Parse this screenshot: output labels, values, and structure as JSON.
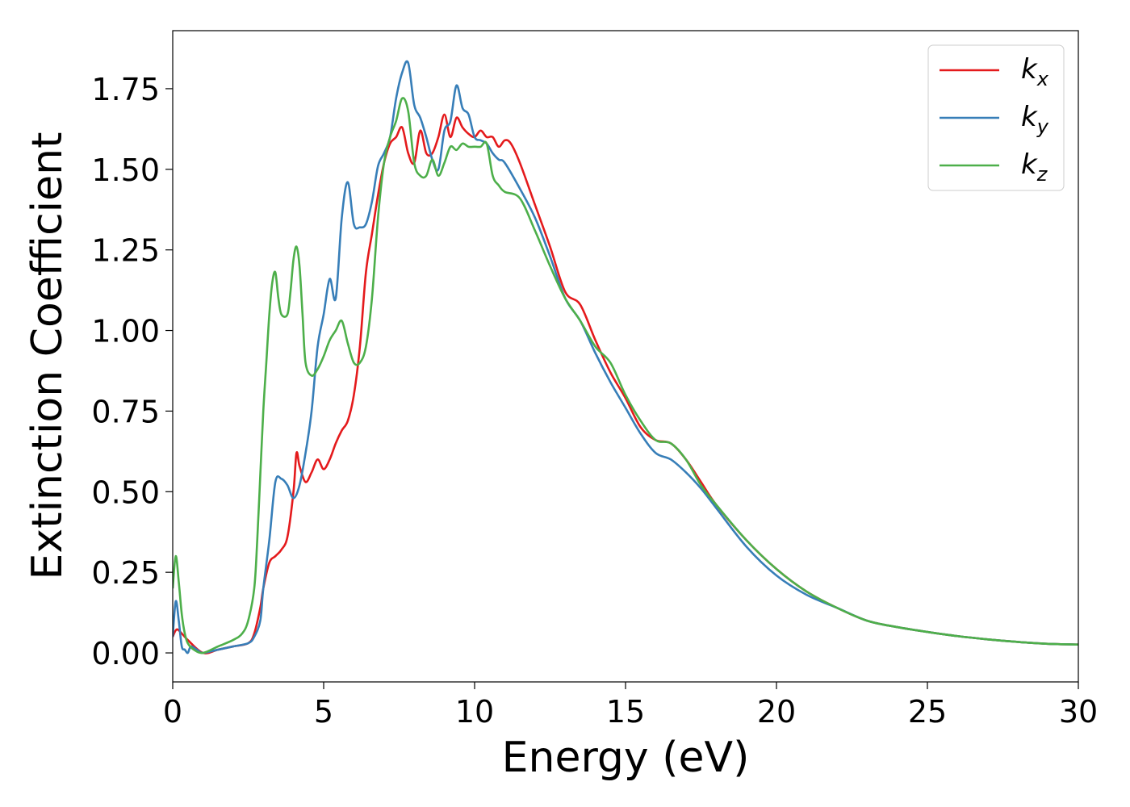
{
  "chart_data": {
    "type": "line",
    "title": "",
    "xlabel": "Energy (eV)",
    "ylabel": "Extinction Coefficient",
    "xlim": [
      0,
      30
    ],
    "ylim": [
      -0.09,
      1.93
    ],
    "xticks": [
      0,
      5,
      10,
      15,
      20,
      25,
      30
    ],
    "xtick_labels": [
      "0",
      "5",
      "10",
      "15",
      "20",
      "25",
      "30"
    ],
    "yticks": [
      0.0,
      0.25,
      0.5,
      0.75,
      1.0,
      1.25,
      1.5,
      1.75
    ],
    "ytick_labels": [
      "0.00",
      "0.25",
      "0.50",
      "0.75",
      "1.00",
      "1.25",
      "1.50",
      "1.75"
    ],
    "grid": false,
    "legend_position": "top-right",
    "series": [
      {
        "name": "k",
        "subscript": "x",
        "color": "#e41a1c",
        "x": [
          0,
          0.1,
          0.2,
          0.5,
          1.0,
          1.5,
          2.0,
          2.5,
          2.7,
          2.9,
          3.0,
          3.2,
          3.4,
          3.6,
          3.8,
          4.0,
          4.1,
          4.2,
          4.4,
          4.6,
          4.8,
          5.0,
          5.2,
          5.4,
          5.6,
          5.8,
          6.0,
          6.2,
          6.4,
          6.6,
          6.8,
          7.0,
          7.2,
          7.4,
          7.6,
          7.8,
          8.0,
          8.2,
          8.4,
          8.6,
          8.8,
          9.0,
          9.2,
          9.4,
          9.6,
          9.8,
          10.0,
          10.2,
          10.4,
          10.6,
          10.8,
          11.0,
          11.2,
          11.5,
          12.0,
          12.5,
          13.0,
          13.5,
          14.0,
          14.5,
          15.0,
          15.5,
          16.0,
          16.5,
          17.0,
          17.5,
          18.0,
          19.0,
          20.0,
          21.0,
          22.0,
          23.0,
          24.0,
          25.0,
          26.0,
          27.0,
          28.0,
          29.0,
          30.0
        ],
        "values": [
          0.05,
          0.07,
          0.07,
          0.04,
          0.0,
          0.01,
          0.02,
          0.03,
          0.06,
          0.14,
          0.2,
          0.28,
          0.3,
          0.32,
          0.36,
          0.5,
          0.62,
          0.58,
          0.53,
          0.56,
          0.6,
          0.57,
          0.6,
          0.65,
          0.69,
          0.72,
          0.8,
          0.95,
          1.18,
          1.3,
          1.42,
          1.52,
          1.58,
          1.6,
          1.63,
          1.55,
          1.52,
          1.62,
          1.55,
          1.55,
          1.6,
          1.67,
          1.6,
          1.66,
          1.63,
          1.61,
          1.6,
          1.62,
          1.6,
          1.6,
          1.57,
          1.59,
          1.58,
          1.52,
          1.39,
          1.26,
          1.12,
          1.08,
          0.97,
          0.87,
          0.79,
          0.7,
          0.66,
          0.65,
          0.6,
          0.53,
          0.46,
          0.35,
          0.26,
          0.19,
          0.14,
          0.1,
          0.08,
          0.065,
          0.052,
          0.042,
          0.034,
          0.028,
          0.026
        ]
      },
      {
        "name": "k",
        "subscript": "y",
        "color": "#377eb8",
        "x": [
          0,
          0.1,
          0.2,
          0.3,
          0.4,
          0.5,
          0.6,
          0.8,
          1.0,
          1.5,
          2.0,
          2.5,
          2.7,
          2.9,
          3.0,
          3.2,
          3.4,
          3.6,
          3.8,
          4.0,
          4.2,
          4.4,
          4.6,
          4.8,
          5.0,
          5.2,
          5.4,
          5.6,
          5.8,
          6.0,
          6.2,
          6.4,
          6.6,
          6.8,
          7.0,
          7.2,
          7.4,
          7.6,
          7.8,
          8.0,
          8.2,
          8.4,
          8.6,
          8.8,
          9.0,
          9.2,
          9.4,
          9.6,
          9.8,
          10.0,
          10.2,
          10.4,
          10.6,
          10.8,
          11.0,
          11.5,
          12.0,
          12.5,
          13.0,
          13.5,
          14.0,
          14.5,
          15.0,
          15.5,
          16.0,
          16.5,
          17.0,
          17.5,
          18.0,
          19.0,
          20.0,
          21.0,
          22.0,
          23.0,
          24.0,
          25.0,
          26.0,
          27.0,
          28.0,
          29.0,
          30.0
        ],
        "values": [
          0.05,
          0.16,
          0.1,
          0.02,
          0.01,
          0.0,
          0.02,
          0.01,
          0.0,
          0.01,
          0.02,
          0.03,
          0.05,
          0.1,
          0.2,
          0.35,
          0.53,
          0.54,
          0.52,
          0.48,
          0.52,
          0.62,
          0.75,
          0.95,
          1.05,
          1.16,
          1.1,
          1.35,
          1.46,
          1.33,
          1.32,
          1.33,
          1.4,
          1.51,
          1.55,
          1.6,
          1.72,
          1.8,
          1.83,
          1.7,
          1.66,
          1.6,
          1.53,
          1.5,
          1.62,
          1.65,
          1.76,
          1.69,
          1.67,
          1.6,
          1.59,
          1.58,
          1.55,
          1.53,
          1.52,
          1.44,
          1.35,
          1.23,
          1.1,
          1.03,
          0.93,
          0.84,
          0.76,
          0.68,
          0.62,
          0.6,
          0.56,
          0.51,
          0.45,
          0.33,
          0.24,
          0.18,
          0.14,
          0.1,
          0.08,
          0.065,
          0.052,
          0.042,
          0.034,
          0.028,
          0.026
        ]
      },
      {
        "name": "k",
        "subscript": "z",
        "color": "#4daf4a",
        "x": [
          0,
          0.1,
          0.2,
          0.3,
          0.4,
          0.5,
          0.7,
          1.0,
          1.5,
          2.0,
          2.3,
          2.5,
          2.7,
          2.8,
          2.9,
          3.0,
          3.1,
          3.2,
          3.3,
          3.4,
          3.5,
          3.6,
          3.8,
          3.9,
          4.0,
          4.1,
          4.2,
          4.3,
          4.4,
          4.6,
          4.8,
          5.0,
          5.2,
          5.4,
          5.6,
          5.8,
          6.0,
          6.2,
          6.4,
          6.6,
          6.8,
          7.0,
          7.2,
          7.4,
          7.6,
          7.8,
          8.0,
          8.2,
          8.4,
          8.6,
          8.8,
          9.0,
          9.2,
          9.4,
          9.6,
          9.8,
          10.0,
          10.2,
          10.4,
          10.6,
          10.8,
          11.0,
          11.5,
          12.0,
          12.5,
          13.0,
          13.5,
          14.0,
          14.5,
          15.0,
          15.5,
          16.0,
          16.5,
          17.0,
          17.5,
          18.0,
          19.0,
          20.0,
          21.0,
          22.0,
          23.0,
          24.0,
          25.0,
          26.0,
          27.0,
          28.0,
          29.0,
          30.0
        ],
        "values": [
          0.2,
          0.3,
          0.22,
          0.12,
          0.06,
          0.03,
          0.01,
          0.0,
          0.02,
          0.04,
          0.06,
          0.1,
          0.2,
          0.35,
          0.55,
          0.75,
          0.9,
          1.05,
          1.15,
          1.18,
          1.1,
          1.05,
          1.05,
          1.12,
          1.22,
          1.26,
          1.2,
          1.05,
          0.9,
          0.86,
          0.88,
          0.92,
          0.97,
          1.0,
          1.03,
          0.96,
          0.9,
          0.9,
          0.95,
          1.1,
          1.35,
          1.52,
          1.6,
          1.65,
          1.72,
          1.68,
          1.52,
          1.48,
          1.48,
          1.53,
          1.48,
          1.52,
          1.57,
          1.56,
          1.58,
          1.57,
          1.57,
          1.57,
          1.58,
          1.48,
          1.45,
          1.43,
          1.41,
          1.31,
          1.2,
          1.1,
          1.03,
          0.95,
          0.9,
          0.8,
          0.72,
          0.66,
          0.65,
          0.6,
          0.52,
          0.46,
          0.35,
          0.26,
          0.19,
          0.14,
          0.1,
          0.08,
          0.065,
          0.052,
          0.042,
          0.034,
          0.028,
          0.026
        ]
      }
    ]
  }
}
